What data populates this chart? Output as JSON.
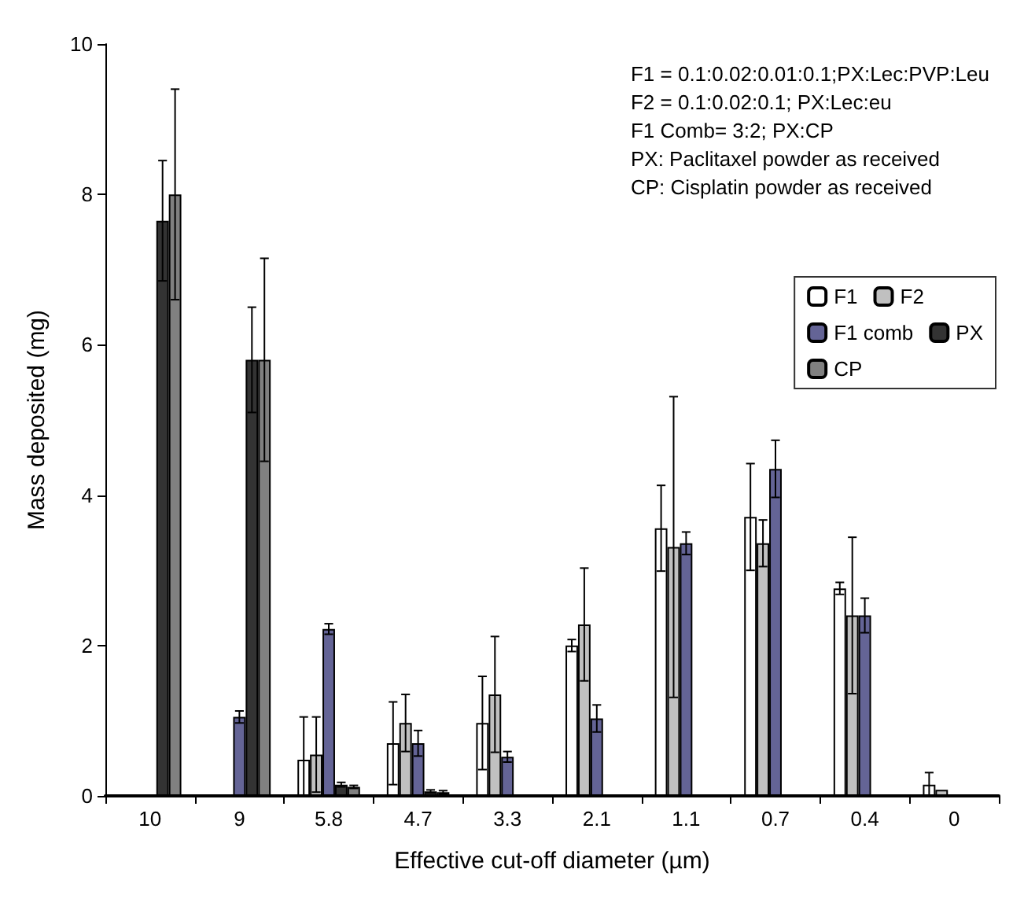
{
  "chart_data": {
    "type": "bar",
    "xlabel": "Effective cut-off diameter (µm)",
    "ylabel": "Mass deposited (mg)",
    "categories": [
      "10",
      "9",
      "5.8",
      "4.7",
      "3.3",
      "2.1",
      "1.1",
      "0.7",
      "0.4",
      "0"
    ],
    "series": [
      {
        "name": "F1",
        "color": "#ffffff",
        "values": [
          null,
          null,
          0.48,
          0.7,
          0.97,
          2.0,
          3.56,
          3.71,
          2.76,
          0.15
        ],
        "errors": [
          null,
          null,
          [
            0,
            1.05
          ],
          0.55,
          0.62,
          0.08,
          0.57,
          0.71,
          0.08,
          0.16
        ]
      },
      {
        "name": "F2",
        "color": "#c0c0c0",
        "values": [
          null,
          null,
          0.55,
          0.97,
          1.35,
          2.28,
          3.31,
          3.36,
          2.4,
          0.08
        ],
        "errors": [
          null,
          null,
          0.5,
          0.38,
          0.77,
          0.75,
          2.0,
          0.31,
          1.04,
          null
        ]
      },
      {
        "name": "F1 comb",
        "color": "#646496",
        "values": [
          null,
          1.05,
          2.22,
          0.7,
          0.52,
          1.03,
          3.36,
          4.35,
          2.4,
          null
        ],
        "errors": [
          null,
          0.08,
          0.07,
          0.17,
          0.07,
          0.18,
          0.15,
          0.38,
          0.23,
          null
        ]
      },
      {
        "name": "PX",
        "color": "#333333",
        "values": [
          7.65,
          5.8,
          0.15,
          0.06,
          null,
          null,
          null,
          null,
          null,
          null
        ],
        "errors": [
          0.8,
          0.7,
          0.03,
          0.02,
          null,
          null,
          null,
          null,
          null,
          null
        ]
      },
      {
        "name": "CP",
        "color": "#808080",
        "values": [
          8.0,
          5.8,
          0.12,
          0.05,
          null,
          null,
          null,
          null,
          null,
          null
        ],
        "errors": [
          1.4,
          1.35,
          0.02,
          0.02,
          null,
          null,
          null,
          null,
          null,
          null
        ]
      }
    ],
    "ylim": [
      0,
      10
    ],
    "yticks": [
      0,
      2,
      4,
      6,
      8,
      10
    ],
    "grid": false,
    "legend": "top right",
    "annotations": [
      "F1 = 0.1:0.02:0.01:0.1;PX:Lec:PVP:Leu",
      "F2 = 0.1:0.02:0.1; PX:Lec:eu",
      "F1 Comb= 3:2; PX:CP",
      "PX: Paclitaxel powder as received",
      "CP: Cisplatin powder as received"
    ]
  }
}
